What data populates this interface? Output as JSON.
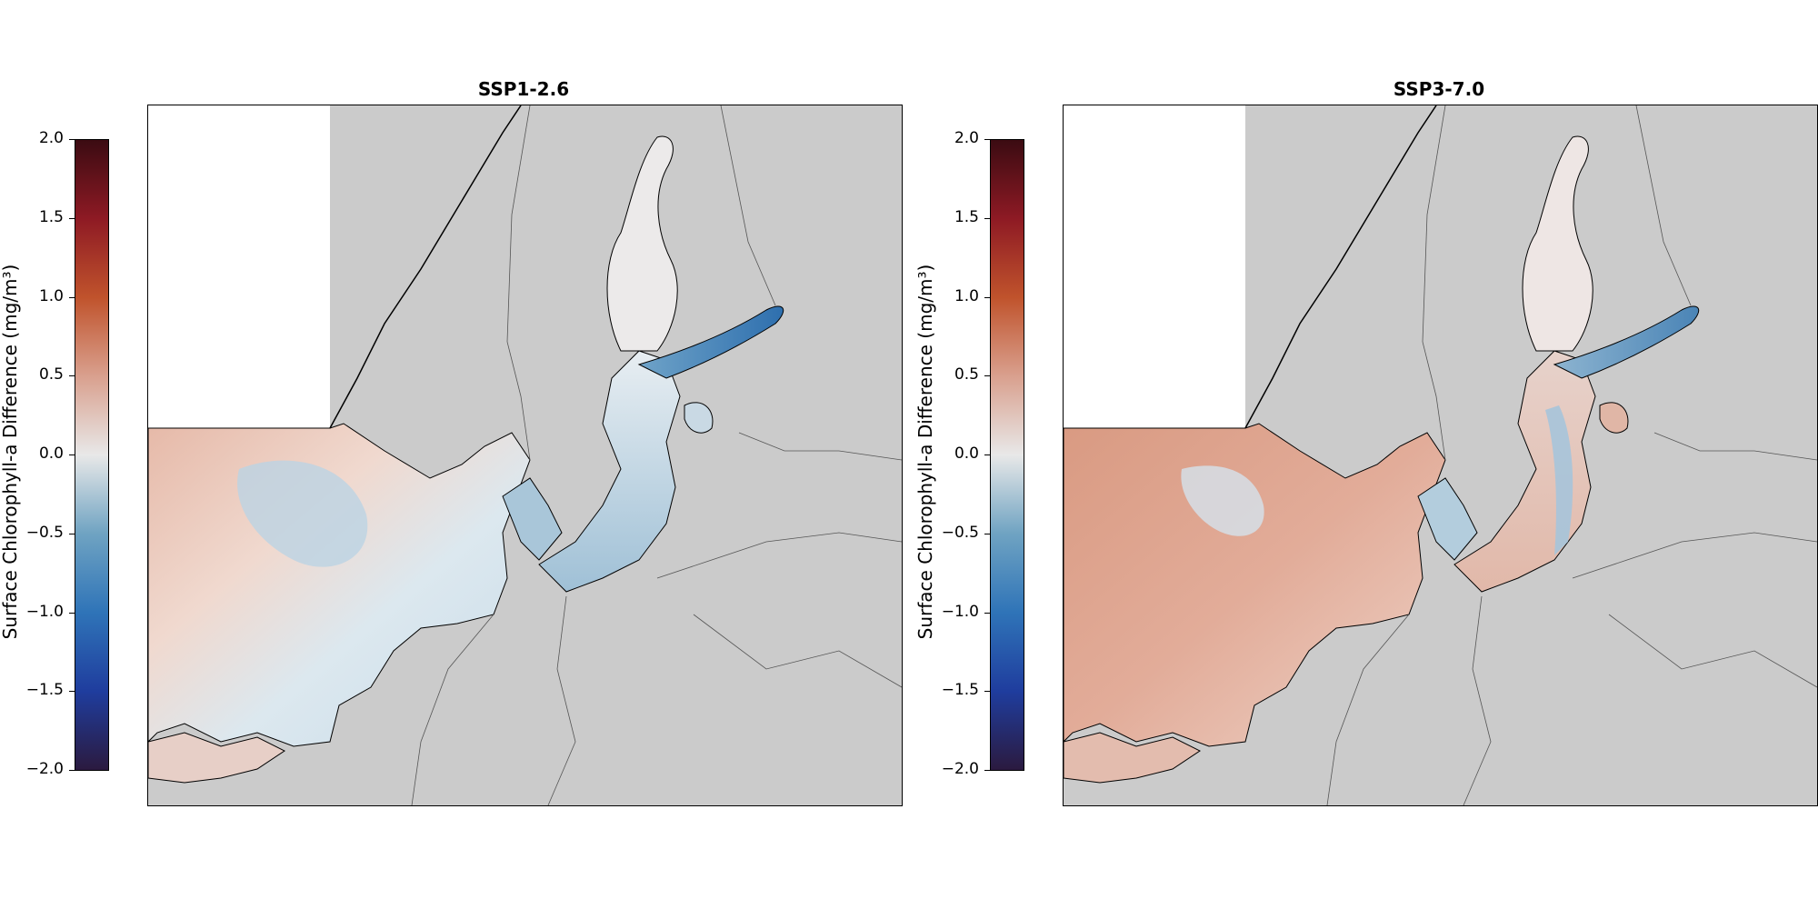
{
  "panels": [
    {
      "title": "SSP1-2.6"
    },
    {
      "title": "SSP3-7.0"
    }
  ],
  "colorbar": {
    "label": "Surface Chlorophyll-a Difference (mg/m³)",
    "ticks": [
      "2.0",
      "1.5",
      "1.0",
      "0.5",
      "0.0",
      "−0.5",
      "−1.0",
      "−1.5",
      "−2.0"
    ],
    "min": -2.0,
    "max": 2.0,
    "colormap_stops": [
      "#2b1a3f",
      "#1f3d9e",
      "#2f74b8",
      "#6fa3c2",
      "#e8e8e8",
      "#d9a08e",
      "#c0532c",
      "#8e1a24",
      "#3b0b12"
    ]
  },
  "colors": {
    "land": "#cbcbcb",
    "sea_positive": "#d98a73",
    "sea_negative": "#4f8bbf",
    "neutral": "#ececec"
  }
}
